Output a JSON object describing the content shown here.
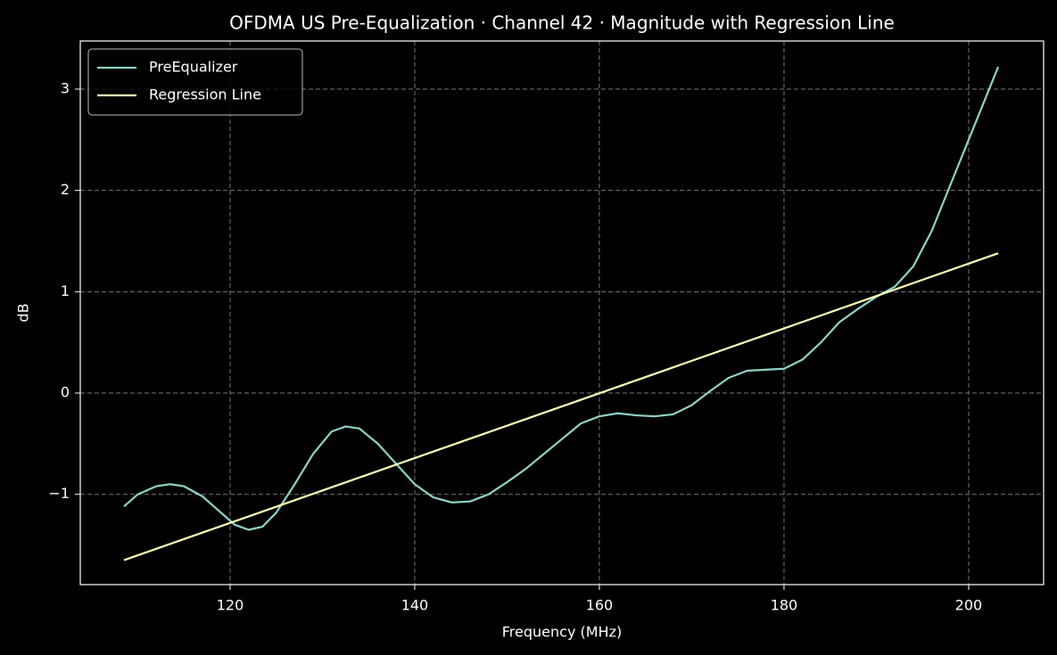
{
  "chart_data": {
    "type": "line",
    "title": "OFDMA US Pre-Equalization · Channel 42 · Magnitude with Regression Line",
    "xlabel": "Frequency (MHz)",
    "ylabel": "dB",
    "xlim": [
      103.77,
      208.12
    ],
    "ylim": [
      -1.891,
      3.475
    ],
    "xticks": [
      120,
      140,
      160,
      180,
      200
    ],
    "yticks": [
      {
        "value": -1,
        "label": "−1"
      },
      0,
      1,
      2,
      3
    ],
    "grid": true,
    "legend": "upper left",
    "series": [
      {
        "name": "PreEqualizer",
        "color": "#8dd3c7",
        "x": [
          108.5,
          110,
          112,
          113.5,
          115,
          117,
          119,
          120.5,
          122,
          123.5,
          125,
          127,
          129,
          131,
          132.5,
          134,
          136,
          138,
          140,
          142,
          144,
          146,
          148,
          150,
          152,
          154,
          156,
          158,
          160,
          162,
          164,
          166,
          168,
          170,
          172,
          174,
          176,
          178,
          180,
          182,
          184,
          186,
          188,
          190,
          192,
          194,
          196,
          198,
          200,
          202,
          203.2
        ],
        "values": [
          -1.12,
          -1.0,
          -0.92,
          -0.9,
          -0.92,
          -1.02,
          -1.18,
          -1.3,
          -1.35,
          -1.32,
          -1.18,
          -0.9,
          -0.6,
          -0.38,
          -0.33,
          -0.35,
          -0.5,
          -0.7,
          -0.9,
          -1.03,
          -1.08,
          -1.07,
          -1.0,
          -0.88,
          -0.75,
          -0.6,
          -0.45,
          -0.3,
          -0.23,
          -0.2,
          -0.22,
          -0.23,
          -0.21,
          -0.12,
          0.02,
          0.15,
          0.22,
          0.23,
          0.24,
          0.33,
          0.5,
          0.7,
          0.83,
          0.95,
          1.05,
          1.25,
          1.6,
          2.05,
          2.5,
          2.95,
          3.22
        ]
      },
      {
        "name": "Regression Line",
        "color": "#ffffb3",
        "x": [
          108.5,
          203.2
        ],
        "values": [
          -1.65,
          1.38
        ]
      }
    ]
  }
}
